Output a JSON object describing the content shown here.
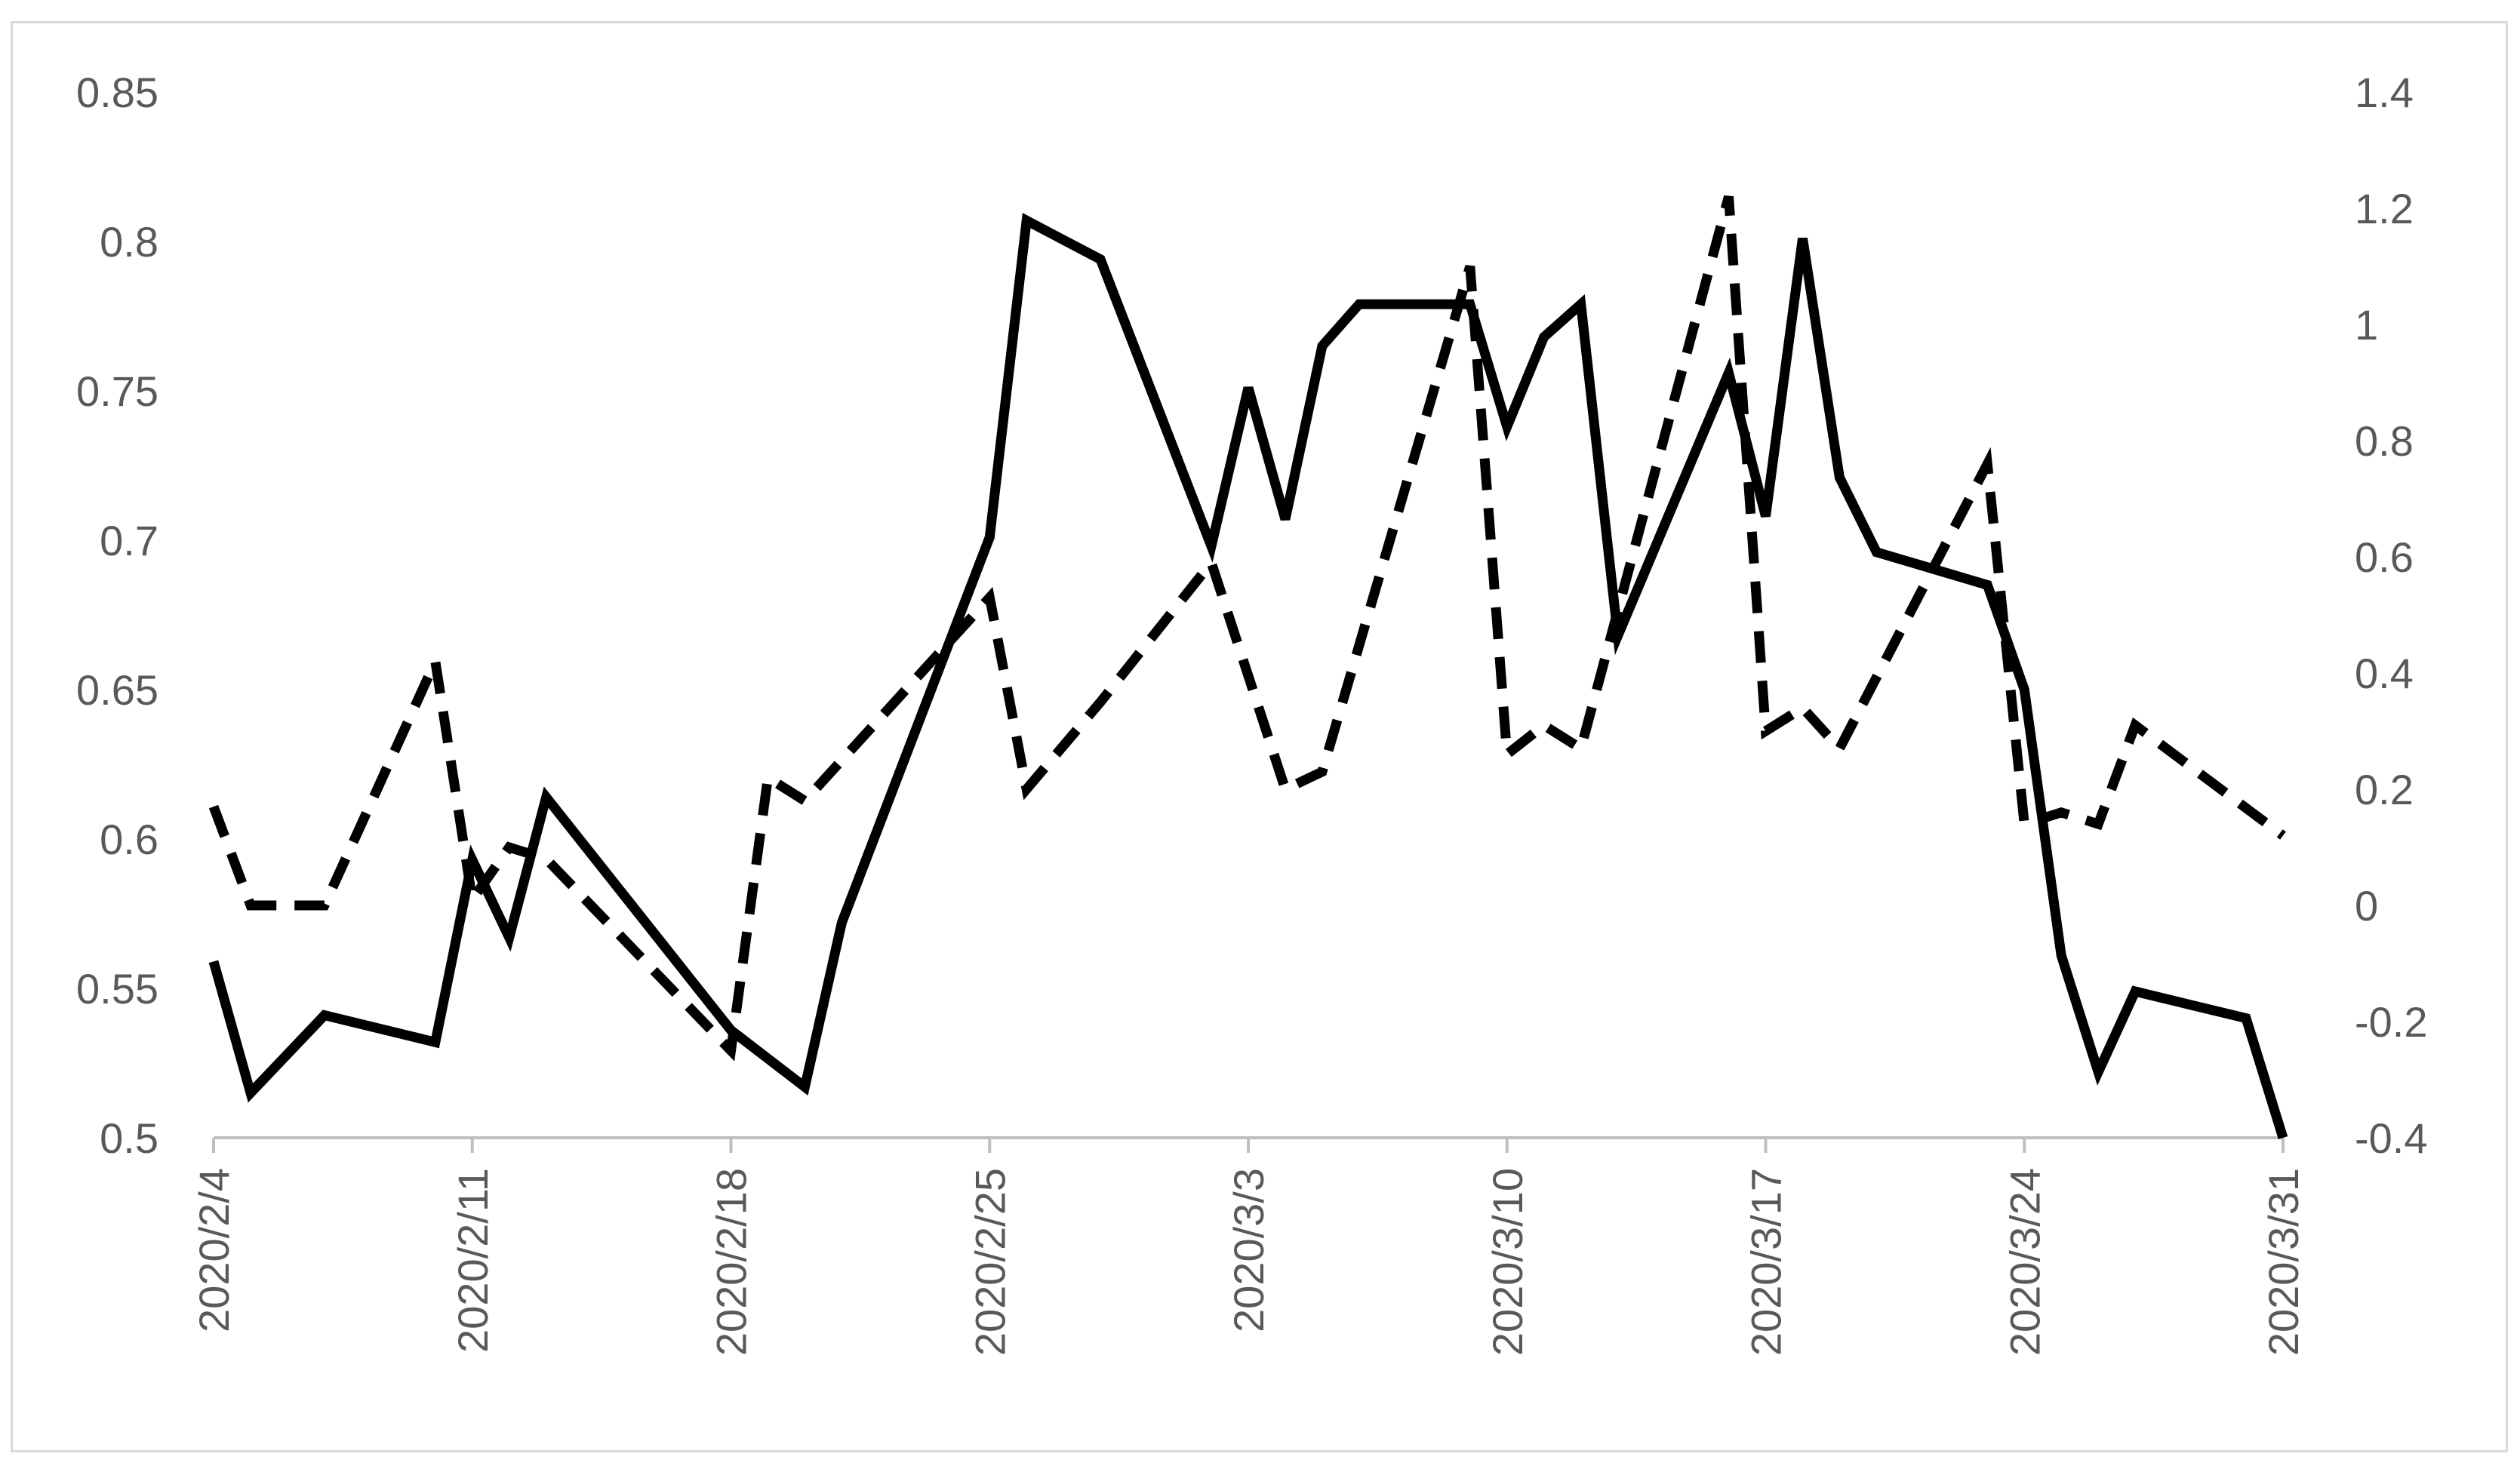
{
  "chart_data": {
    "type": "line",
    "title": "",
    "xlabel": "",
    "ylabel": "",
    "y2label": "",
    "grid": false,
    "legend": "none",
    "x_axis": {
      "type": "date",
      "start": "2020/2/4",
      "end": "2020/3/31",
      "tick_labels": [
        "2020/2/4",
        "2020/2/11",
        "2020/2/18",
        "2020/2/25",
        "2020/3/3",
        "2020/3/10",
        "2020/3/17",
        "2020/3/24",
        "2020/3/31"
      ]
    },
    "y_left": {
      "ylim": [
        0.5,
        0.85
      ],
      "tick_labels": [
        "0.5",
        "0.55",
        "0.6",
        "0.65",
        "0.7",
        "0.75",
        "0.8",
        "0.85"
      ]
    },
    "y_right": {
      "ylim": [
        -0.4,
        1.4
      ],
      "tick_labels": [
        "-0.4",
        "-0.2",
        "0",
        "0.2",
        "0.4",
        "0.6",
        "0.8",
        "1",
        "1.2",
        "1.4"
      ]
    },
    "series": [
      {
        "axis": "left",
        "style": "solid",
        "color": "#000000",
        "points": [
          [
            "2020/2/4",
            0.559
          ],
          [
            "2020/2/5",
            0.515
          ],
          [
            "2020/2/7",
            0.541
          ],
          [
            "2020/2/10",
            0.532
          ],
          [
            "2020/2/11",
            0.593
          ],
          [
            "2020/2/12",
            0.567
          ],
          [
            "2020/2/13",
            0.614
          ],
          [
            "2020/2/18",
            0.536
          ],
          [
            "2020/2/20",
            0.517
          ],
          [
            "2020/2/21",
            0.572
          ],
          [
            "2020/2/25",
            0.701
          ],
          [
            "2020/2/26",
            0.807
          ],
          [
            "2020/2/28",
            0.794
          ],
          [
            "2020/3/2",
            0.698
          ],
          [
            "2020/3/3",
            0.751
          ],
          [
            "2020/3/4",
            0.707
          ],
          [
            "2020/3/5",
            0.765
          ],
          [
            "2020/3/6",
            0.779
          ],
          [
            "2020/3/9",
            0.779
          ],
          [
            "2020/3/10",
            0.738
          ],
          [
            "2020/3/11",
            0.768
          ],
          [
            "2020/3/12",
            0.779
          ],
          [
            "2020/3/13",
            0.668
          ],
          [
            "2020/3/16",
            0.756
          ],
          [
            "2020/3/17",
            0.708
          ],
          [
            "2020/3/18",
            0.801
          ],
          [
            "2020/3/19",
            0.721
          ],
          [
            "2020/3/20",
            0.696
          ],
          [
            "2020/3/23",
            0.685
          ],
          [
            "2020/3/24",
            0.65
          ],
          [
            "2020/3/25",
            0.561
          ],
          [
            "2020/3/26",
            0.522
          ],
          [
            "2020/3/27",
            0.549
          ],
          [
            "2020/3/30",
            0.54
          ],
          [
            "2020/3/31",
            0.5
          ]
        ]
      },
      {
        "axis": "right",
        "style": "dashed",
        "color": "#000000",
        "points": [
          [
            "2020/2/4",
            0.17
          ],
          [
            "2020/2/5",
            0.0
          ],
          [
            "2020/2/7",
            0.0
          ],
          [
            "2020/2/10",
            0.42
          ],
          [
            "2020/2/11",
            0.01
          ],
          [
            "2020/2/12",
            0.1
          ],
          [
            "2020/2/13",
            0.08
          ],
          [
            "2020/2/18",
            -0.25
          ],
          [
            "2020/2/19",
            0.22
          ],
          [
            "2020/2/20",
            0.18
          ],
          [
            "2020/2/25",
            0.53
          ],
          [
            "2020/2/26",
            0.2
          ],
          [
            "2020/2/28",
            0.35
          ],
          [
            "2020/3/2",
            0.59
          ],
          [
            "2020/3/4",
            0.2
          ],
          [
            "2020/3/5",
            0.23
          ],
          [
            "2020/3/9",
            1.1
          ],
          [
            "2020/3/10",
            0.26
          ],
          [
            "2020/3/11",
            0.31
          ],
          [
            "2020/3/12",
            0.27
          ],
          [
            "2020/3/16",
            1.22
          ],
          [
            "2020/3/17",
            0.3
          ],
          [
            "2020/3/18",
            0.34
          ],
          [
            "2020/3/19",
            0.27
          ],
          [
            "2020/3/23",
            0.76
          ],
          [
            "2020/3/24",
            0.14
          ],
          [
            "2020/3/25",
            0.16
          ],
          [
            "2020/3/26",
            0.14
          ],
          [
            "2020/3/27",
            0.31
          ],
          [
            "2020/3/31",
            0.12
          ]
        ]
      }
    ]
  }
}
